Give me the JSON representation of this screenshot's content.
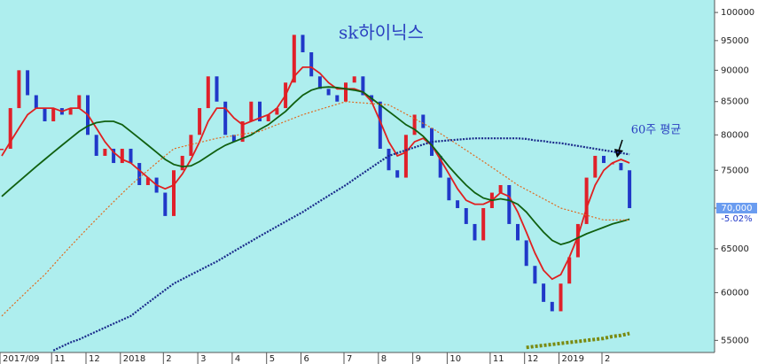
{
  "chart_data": {
    "type": "stock",
    "title": "sk하이닉스",
    "annotation": "60주 평균",
    "log_scale": true,
    "grid": false,
    "ylim": [
      53800,
      102300
    ],
    "yticks": [
      55000,
      60000,
      65000,
      70000,
      75000,
      80000,
      85000,
      90000,
      95000,
      100000
    ],
    "price_tag": {
      "value": 70000,
      "label": "70,000"
    },
    "change": {
      "value": -5.02,
      "label": "-5.02%"
    },
    "up_color": "#e0202a",
    "down_color": "#2038c8",
    "categories": [
      "2017/09",
      null,
      null,
      null,
      null,
      null,
      "11",
      null,
      null,
      null,
      "12",
      null,
      null,
      null,
      "2018",
      null,
      null,
      null,
      null,
      "2",
      null,
      null,
      null,
      "3",
      null,
      null,
      null,
      "4",
      null,
      null,
      null,
      "5",
      null,
      null,
      null,
      "6",
      null,
      null,
      null,
      null,
      "7",
      null,
      null,
      null,
      "8",
      null,
      null,
      null,
      "9",
      null,
      null,
      null,
      "10",
      null,
      null,
      null,
      null,
      "11",
      null,
      null,
      null,
      "12",
      null,
      null,
      null,
      "2019",
      null,
      null,
      null,
      null,
      "2",
      null,
      null,
      null
    ],
    "series": [
      {
        "style": "candle",
        "values": [
          78000,
          84000,
          90000,
          86000,
          84000,
          82000,
          84000,
          83000,
          84000,
          86000,
          80000,
          77000,
          78000,
          76000,
          78000,
          76000,
          73000,
          74000,
          72000,
          69000,
          75000,
          77000,
          80000,
          84000,
          89000,
          85000,
          80000,
          79000,
          82000,
          85000,
          82000,
          83000,
          84000,
          88000,
          96000,
          93000,
          89000,
          87000,
          86000,
          85000,
          88000,
          89000,
          86000,
          85000,
          78000,
          75000,
          74000,
          80000,
          83000,
          81000,
          77000,
          74000,
          71000,
          70000,
          68000,
          66000,
          70000,
          72000,
          73000,
          68000,
          66000,
          63000,
          61000,
          59000,
          58000,
          61000,
          64000,
          68000,
          74000,
          77000,
          76000,
          76000,
          75000,
          70000
        ]
      },
      {
        "style": "line",
        "color": "#e02020",
        "values": [
          77000,
          79000,
          81000,
          83000,
          84000,
          84000,
          84000,
          83500,
          84000,
          84000,
          83000,
          81000,
          79000,
          77500,
          76500,
          76000,
          75000,
          74000,
          73000,
          72500,
          73000,
          74500,
          76500,
          79000,
          82000,
          84000,
          84000,
          82500,
          81500,
          82000,
          82500,
          83000,
          84000,
          86000,
          89000,
          90500,
          90500,
          89500,
          88000,
          87000,
          87000,
          87000,
          86500,
          85000,
          82000,
          79000,
          77000,
          77500,
          79000,
          79500,
          78500,
          76500,
          74500,
          72500,
          71000,
          70500,
          70500,
          71000,
          72000,
          71500,
          69500,
          67000,
          64500,
          62500,
          61500,
          62000,
          64000,
          66500,
          70000,
          73000,
          75000,
          76000,
          76500,
          76000
        ]
      },
      {
        "style": "line",
        "color": "#106010",
        "values": [
          71500,
          72500,
          73500,
          74500,
          75500,
          76500,
          77500,
          78500,
          79500,
          80500,
          81300,
          81800,
          82000,
          82000,
          81500,
          80500,
          79500,
          78500,
          77500,
          76500,
          75800,
          75500,
          75600,
          76200,
          77000,
          77800,
          78500,
          79000,
          79500,
          80000,
          80800,
          81500,
          82500,
          83500,
          84800,
          86000,
          86800,
          87200,
          87300,
          87200,
          87000,
          86800,
          86500,
          85500,
          84500,
          83500,
          82500,
          81500,
          80800,
          79800,
          78500,
          77000,
          75500,
          74200,
          73000,
          72000,
          71300,
          71000,
          71200,
          71000,
          70500,
          69500,
          68200,
          67000,
          66000,
          65500,
          65800,
          66300,
          66800,
          67200,
          67600,
          68000,
          68300,
          68600
        ]
      },
      {
        "style": "dotted",
        "color": "#e06a20",
        "values": [
          57500,
          58400,
          59300,
          60200,
          61100,
          62000,
          63100,
          64200,
          65300,
          66400,
          67500,
          68600,
          69700,
          70800,
          71900,
          73000,
          74000,
          75000,
          76000,
          77000,
          78000,
          78300,
          78600,
          78900,
          79200,
          79500,
          79700,
          79900,
          80100,
          80300,
          80500,
          81000,
          81500,
          82000,
          82500,
          83000,
          83400,
          83800,
          84200,
          84600,
          85000,
          84900,
          84800,
          84700,
          84600,
          84500,
          83800,
          83100,
          82400,
          81700,
          81000,
          80200,
          79400,
          78600,
          77800,
          77000,
          76200,
          75400,
          74600,
          73800,
          73000,
          72400,
          71800,
          71200,
          70600,
          70000,
          69700,
          69400,
          69100,
          68800,
          68500,
          68500,
          68500,
          68500
        ]
      },
      {
        "style": "dotted-bold",
        "color": "#1a2a8a",
        "values": [
          null,
          null,
          null,
          null,
          null,
          null,
          54000,
          54400,
          54800,
          55100,
          55500,
          55900,
          56300,
          56700,
          57100,
          57500,
          58200,
          58900,
          59600,
          60300,
          61000,
          61500,
          62000,
          62500,
          63000,
          63500,
          64100,
          64700,
          65300,
          65900,
          66500,
          67100,
          67700,
          68300,
          68900,
          69500,
          70200,
          70900,
          71600,
          72300,
          73000,
          73800,
          74600,
          75400,
          76200,
          77000,
          77400,
          77800,
          78200,
          78600,
          79000,
          79100,
          79200,
          79300,
          79400,
          79500,
          79500,
          79500,
          79500,
          79500,
          79500,
          79400,
          79200,
          79100,
          78900,
          78800,
          78600,
          78400,
          78200,
          78000,
          77800,
          77600,
          77400,
          77200
        ]
      },
      {
        "style": "dotted-heavy",
        "color": "#7a8a10",
        "values": [
          null,
          null,
          null,
          null,
          null,
          null,
          null,
          null,
          null,
          null,
          null,
          null,
          null,
          null,
          null,
          null,
          null,
          null,
          null,
          null,
          null,
          null,
          null,
          null,
          null,
          null,
          null,
          null,
          null,
          null,
          null,
          null,
          null,
          null,
          null,
          null,
          null,
          null,
          null,
          null,
          null,
          null,
          null,
          null,
          null,
          null,
          null,
          null,
          null,
          null,
          null,
          null,
          null,
          null,
          null,
          null,
          null,
          null,
          null,
          null,
          null,
          54300,
          54400,
          54500,
          54600,
          54700,
          54800,
          54900,
          55000,
          55100,
          55200,
          55400,
          55500,
          55700
        ]
      }
    ]
  }
}
